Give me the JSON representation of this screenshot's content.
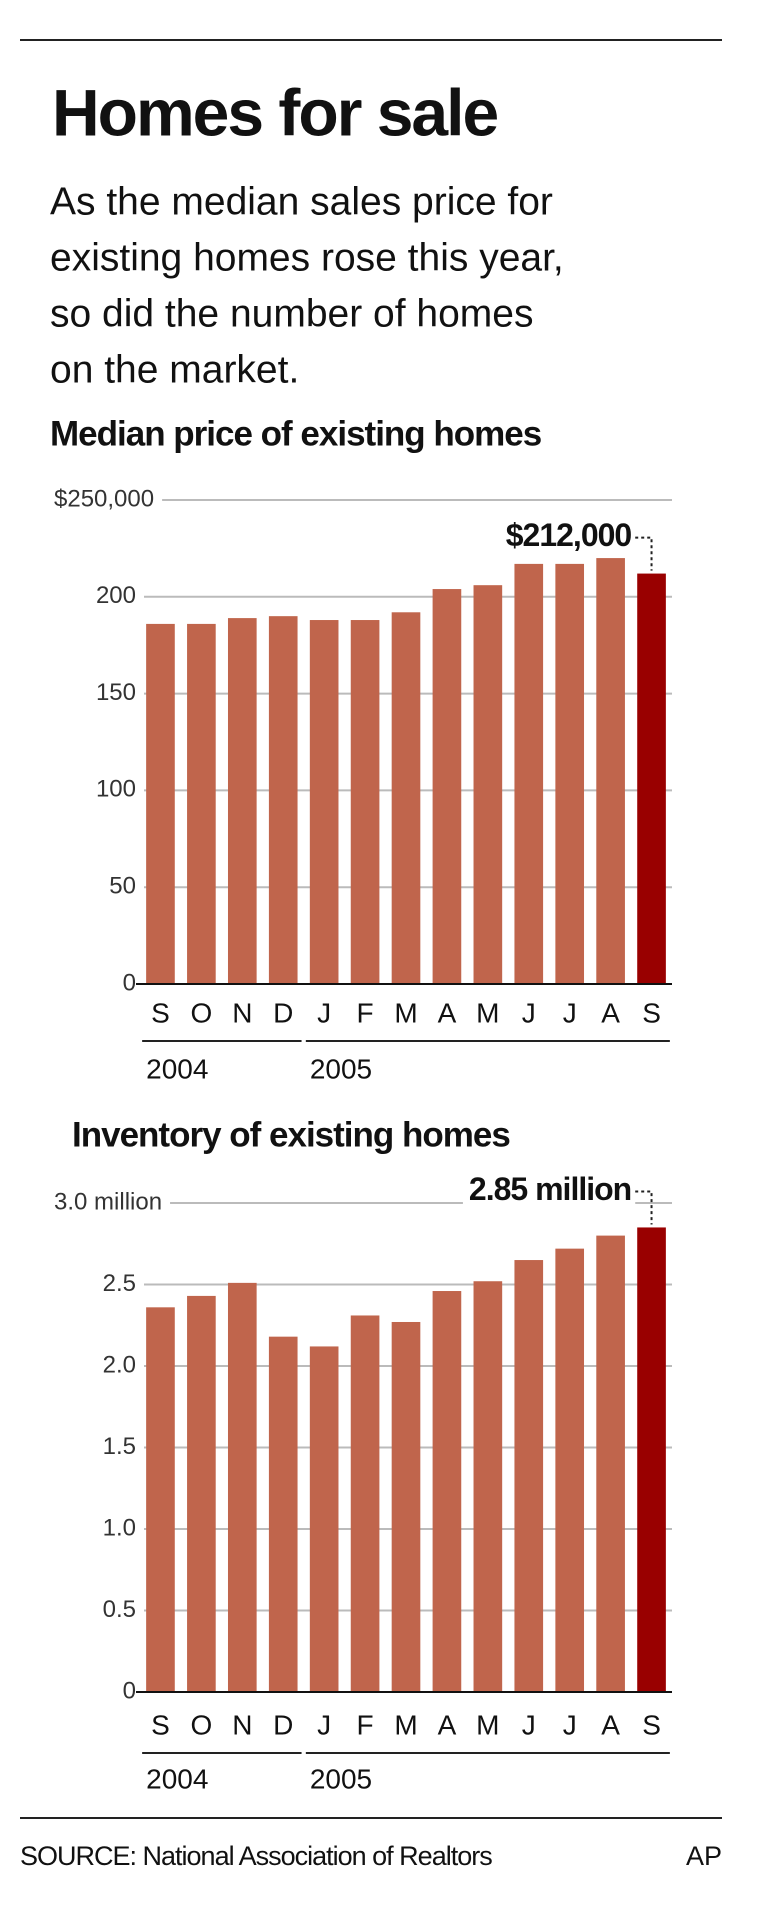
{
  "header": {
    "title": "Homes for sale",
    "subtitle_lines": [
      "As the median sales price for",
      "existing homes rose this year,",
      "so did the number of homes",
      "on the market."
    ]
  },
  "chart_data": [
    {
      "type": "bar",
      "title": "Median price of existing homes",
      "categories": [
        "S",
        "O",
        "N",
        "D",
        "J",
        "F",
        "M",
        "A",
        "M",
        "J",
        "J",
        "A",
        "S"
      ],
      "x_group_labels": [
        "2004",
        null,
        null,
        null,
        "2005",
        null,
        null,
        null,
        null,
        null,
        null,
        null,
        null
      ],
      "values": [
        186000,
        186000,
        189000,
        190000,
        188000,
        188000,
        192000,
        204000,
        206000,
        217000,
        217000,
        220000,
        212000
      ],
      "value_labels": [
        null,
        null,
        null,
        null,
        null,
        null,
        null,
        null,
        null,
        null,
        null,
        null,
        "$212,000"
      ],
      "colors": [
        "#c0654c",
        "#c0654c",
        "#c0654c",
        "#c0654c",
        "#c0654c",
        "#c0654c",
        "#c0654c",
        "#c0654c",
        "#c0654c",
        "#c0654c",
        "#c0654c",
        "#c0654c",
        "#990000"
      ],
      "ylim": [
        0,
        250000
      ],
      "yticks": [
        0,
        {
          "value": 50000,
          "label": "50"
        },
        {
          "value": 100000,
          "label": "100"
        },
        {
          "value": 150000,
          "label": "150"
        },
        {
          "value": 200000,
          "label": "200"
        },
        {
          "value": 250000,
          "label": "$250,000"
        }
      ],
      "grid": true
    },
    {
      "type": "bar",
      "title": "Inventory of existing homes",
      "categories": [
        "S",
        "O",
        "N",
        "D",
        "J",
        "F",
        "M",
        "A",
        "M",
        "J",
        "J",
        "A",
        "S"
      ],
      "x_group_labels": [
        "2004",
        null,
        null,
        null,
        "2005",
        null,
        null,
        null,
        null,
        null,
        null,
        null,
        null
      ],
      "values": [
        2.36,
        2.43,
        2.51,
        2.18,
        2.12,
        2.31,
        2.27,
        2.46,
        2.52,
        2.65,
        2.72,
        2.8,
        2.85
      ],
      "value_labels": [
        null,
        null,
        null,
        null,
        null,
        null,
        null,
        null,
        null,
        null,
        null,
        null,
        "2.85 million"
      ],
      "colors": [
        "#c0654c",
        "#c0654c",
        "#c0654c",
        "#c0654c",
        "#c0654c",
        "#c0654c",
        "#c0654c",
        "#c0654c",
        "#c0654c",
        "#c0654c",
        "#c0654c",
        "#c0654c",
        "#990000"
      ],
      "ylim": [
        0,
        3
      ],
      "yticks": [
        0,
        0.5,
        {
          "value": 1,
          "label": "1.0"
        },
        1.5,
        {
          "value": 2,
          "label": "2.0"
        },
        2.5,
        {
          "value": 3,
          "label": "3.0 million"
        }
      ],
      "grid": true
    }
  ],
  "footer": {
    "source": "SOURCE: National Association of Realtors",
    "credit": "AP"
  }
}
